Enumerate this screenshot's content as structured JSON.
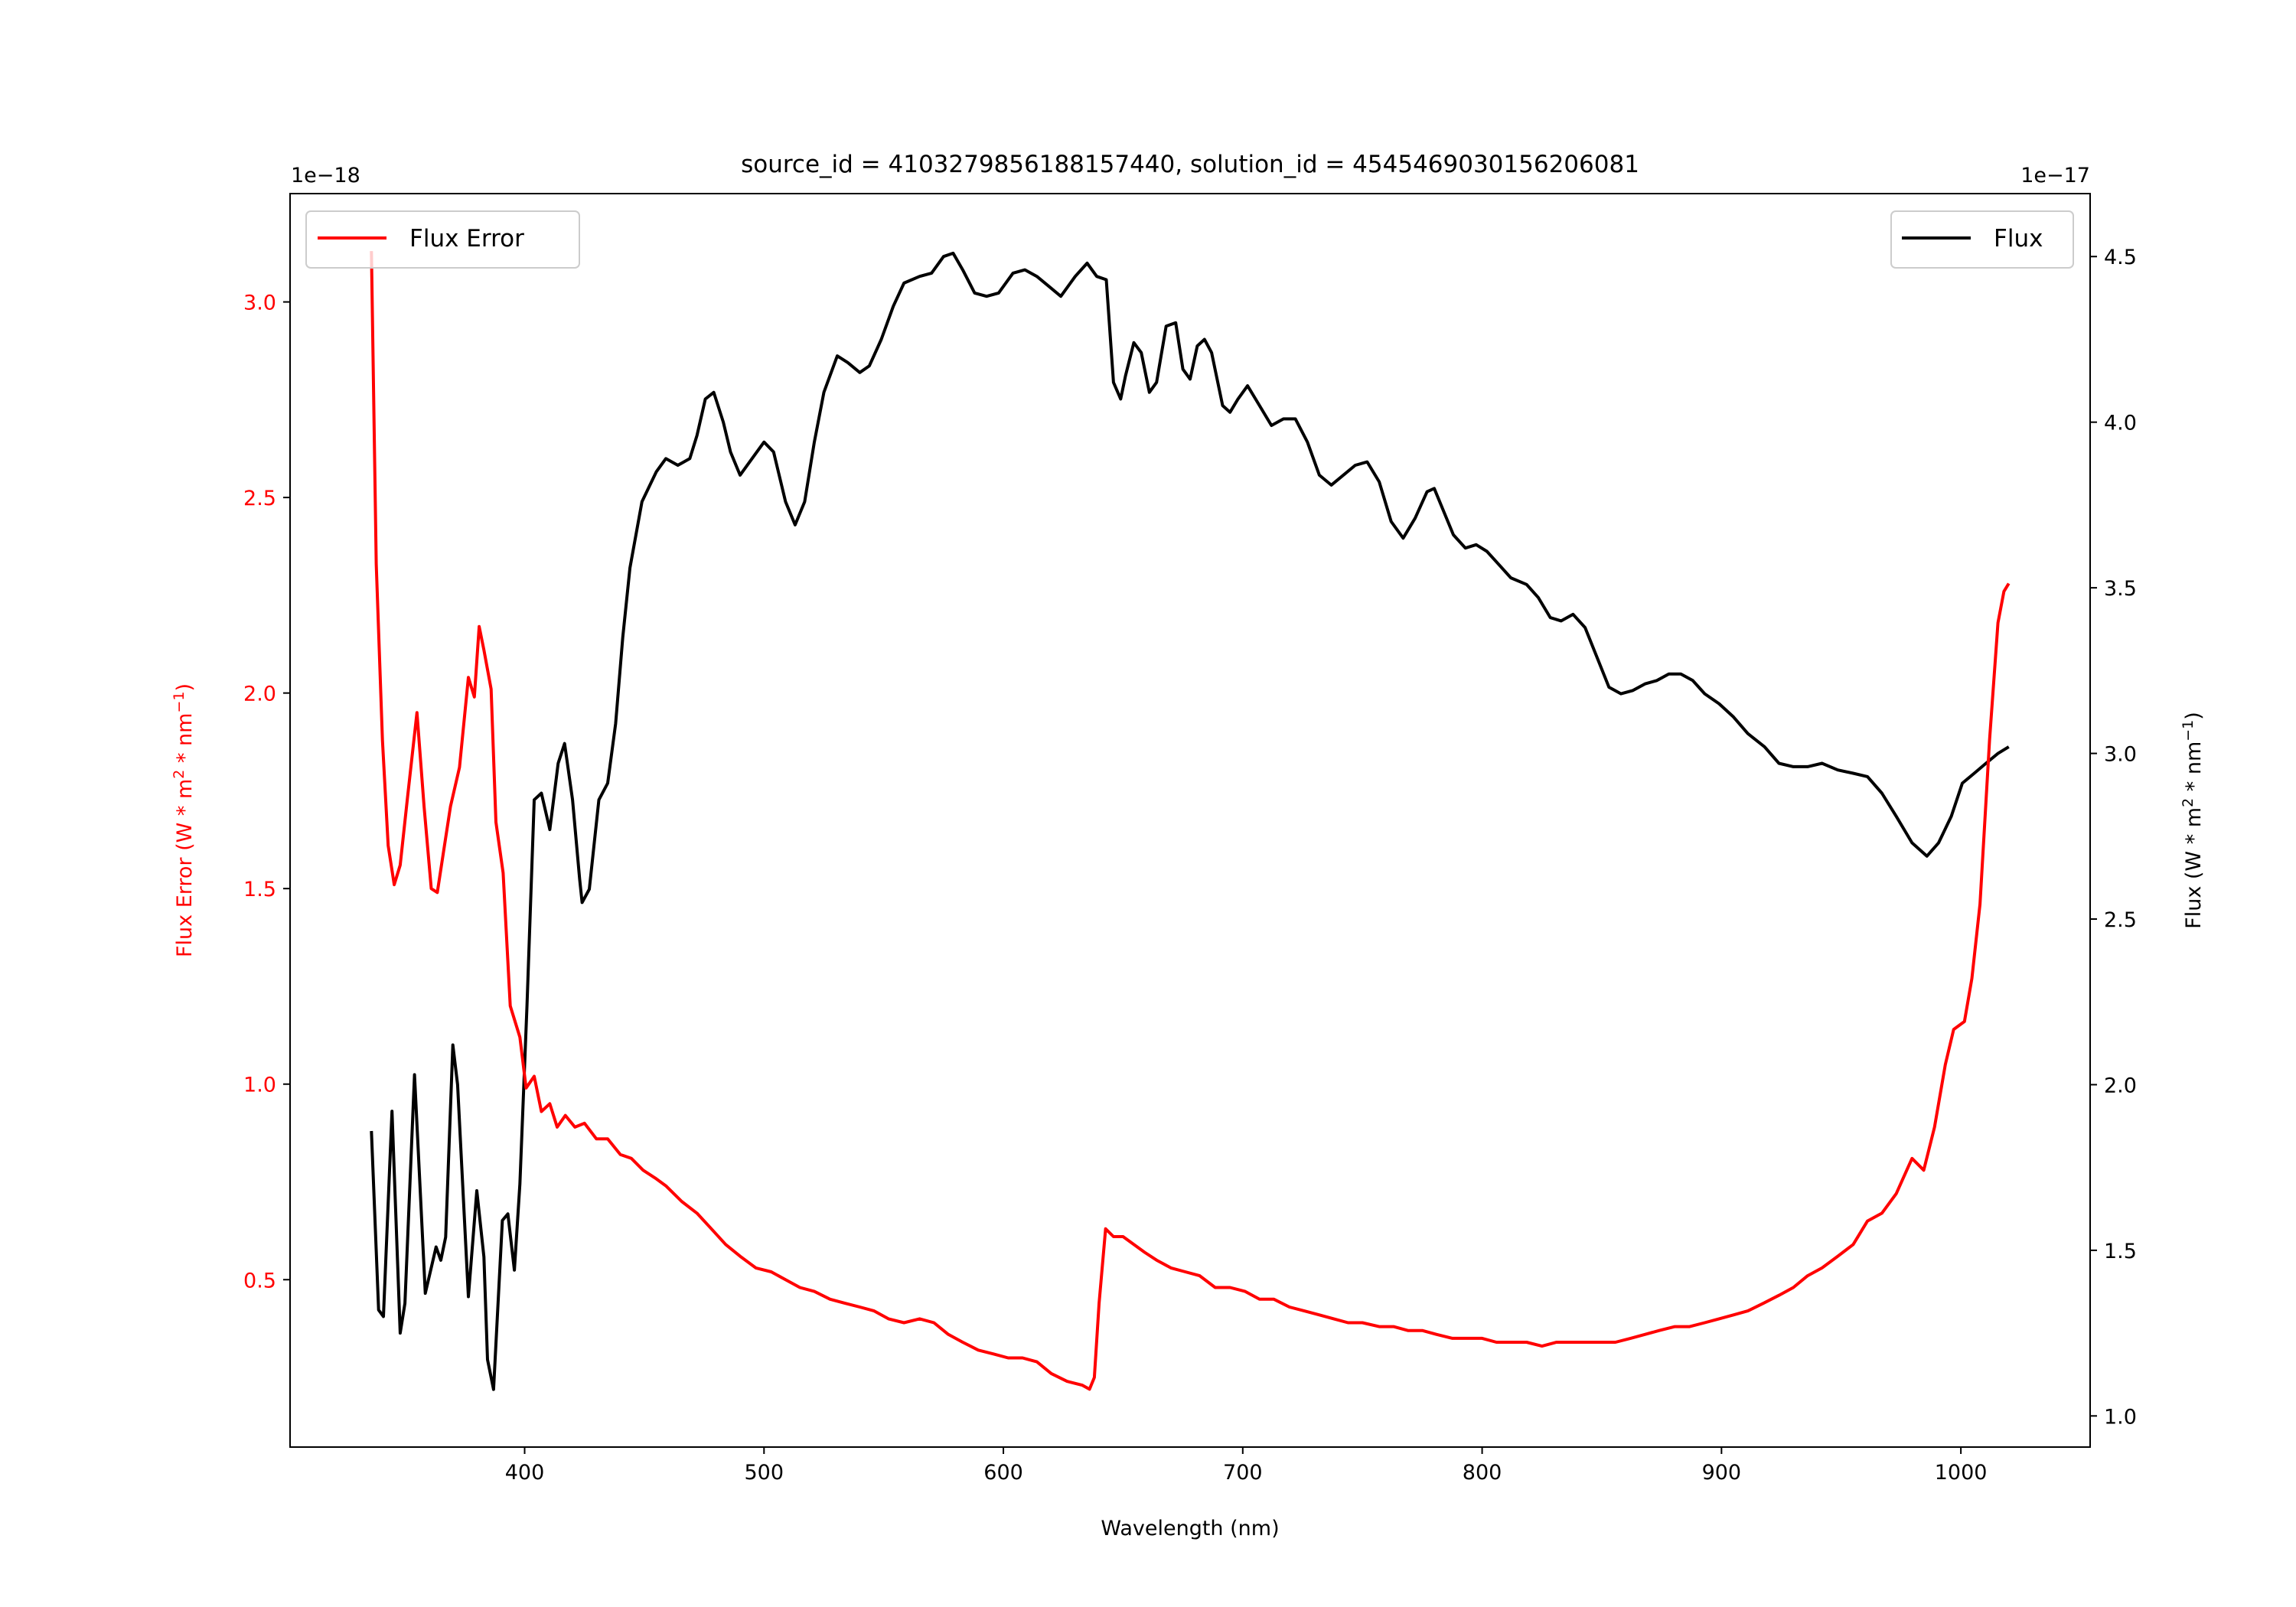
{
  "chart_data": {
    "type": "line",
    "title": "source_id = 4103279856188157440, solution_id = 4545469030156206081",
    "xlabel": "Wavelength (nm)",
    "ylabel_left": "Flux Error (W * m^2 * nm^-1)",
    "ylabel_right": "Flux (W * m^2 * nm^-1)",
    "left_offset_label": "1e−18",
    "right_offset_label": "1e−17",
    "xlim": [
      302,
      1054
    ],
    "ylim_left": [
      0.072,
      3.277
    ],
    "ylim_right": [
      0.906,
      4.69
    ],
    "xticks": [
      400,
      500,
      600,
      700,
      800,
      900,
      1000
    ],
    "yticks_left": [
      "0.5",
      "1.0",
      "1.5",
      "2.0",
      "2.5",
      "3.0"
    ],
    "yticks_right": [
      "1.0",
      "1.5",
      "2.0",
      "2.5",
      "3.0",
      "3.5",
      "4.0",
      "4.5"
    ],
    "grid": false,
    "colors": {
      "flux_error": "#ff0000",
      "flux": "#000000"
    },
    "series": [
      {
        "name": "Flux Error",
        "axis": "left",
        "legend": "top-left",
        "x": [
          336,
          338,
          340.6,
          343,
          345.5,
          348,
          351,
          355,
          358,
          361,
          363.5,
          366,
          369,
          372.8,
          376.5,
          379,
          381,
          383,
          386,
          388,
          391,
          394,
          398,
          400.6,
          404,
          407,
          410.5,
          413.6,
          417,
          421,
          425,
          430,
          434.7,
          440,
          444.6,
          449.5,
          454.5,
          459,
          465.6,
          472,
          478,
          484,
          490,
          496.6,
          503,
          509,
          515,
          521,
          527.6,
          533.7,
          540,
          546,
          552,
          558.5,
          565,
          571,
          577,
          583,
          589.5,
          596,
          602,
          608,
          614,
          620,
          626.6,
          633,
          636,
          638,
          640,
          642.7,
          646,
          650,
          654.5,
          659,
          664,
          670,
          676,
          682,
          688.5,
          694.7,
          701,
          707,
          713,
          719.5,
          725.7,
          732,
          738,
          744,
          750,
          757,
          763,
          769,
          775,
          781,
          787.6,
          794,
          800,
          806,
          812,
          818.6,
          825,
          831,
          837,
          843,
          849.5,
          855.7,
          862,
          868,
          874,
          880.5,
          886.7,
          893,
          899,
          905,
          911,
          917.6,
          924,
          930,
          936,
          942,
          948.6,
          955,
          961,
          967,
          973,
          979.6,
          984.5,
          989,
          993.5,
          997,
          1001.5,
          1004.6,
          1008,
          1012,
          1015.5,
          1018,
          1020
        ],
        "y": [
          3.13,
          2.33,
          1.88,
          1.61,
          1.51,
          1.56,
          1.73,
          1.95,
          1.71,
          1.5,
          1.49,
          1.59,
          1.71,
          1.81,
          2.04,
          1.99,
          2.17,
          2.11,
          2.01,
          1.67,
          1.54,
          1.2,
          1.12,
          0.99,
          1.02,
          0.93,
          0.95,
          0.89,
          0.92,
          0.89,
          0.9,
          0.86,
          0.86,
          0.82,
          0.81,
          0.78,
          0.76,
          0.74,
          0.7,
          0.67,
          0.63,
          0.59,
          0.56,
          0.53,
          0.52,
          0.5,
          0.48,
          0.47,
          0.45,
          0.44,
          0.43,
          0.42,
          0.4,
          0.39,
          0.4,
          0.39,
          0.36,
          0.34,
          0.32,
          0.31,
          0.3,
          0.3,
          0.29,
          0.26,
          0.24,
          0.23,
          0.22,
          0.25,
          0.44,
          0.63,
          0.61,
          0.61,
          0.59,
          0.57,
          0.55,
          0.53,
          0.52,
          0.51,
          0.48,
          0.48,
          0.47,
          0.45,
          0.45,
          0.43,
          0.42,
          0.41,
          0.4,
          0.39,
          0.39,
          0.38,
          0.38,
          0.37,
          0.37,
          0.36,
          0.35,
          0.35,
          0.35,
          0.34,
          0.34,
          0.34,
          0.33,
          0.34,
          0.34,
          0.34,
          0.34,
          0.34,
          0.35,
          0.36,
          0.37,
          0.38,
          0.38,
          0.39,
          0.4,
          0.41,
          0.42,
          0.44,
          0.46,
          0.48,
          0.51,
          0.53,
          0.56,
          0.59,
          0.65,
          0.67,
          0.72,
          0.81,
          0.78,
          0.89,
          1.05,
          1.14,
          1.16,
          1.27,
          1.46,
          1.88,
          2.18,
          2.26,
          2.28
        ]
      },
      {
        "name": "Flux",
        "axis": "right",
        "legend": "top-right",
        "x": [
          336,
          339,
          341,
          344.6,
          348,
          350,
          354,
          358.5,
          363,
          365,
          367,
          370,
          372,
          376.5,
          380,
          383,
          384.5,
          387,
          390.7,
          393,
          395.7,
          398,
          401,
          404,
          407,
          410.5,
          414,
          416.7,
          420,
          423,
          424,
          427,
          431,
          434.7,
          438,
          441,
          444,
          449,
          455,
          459,
          464,
          469,
          472,
          475.5,
          479,
          483,
          486,
          490,
          495,
          500,
          504,
          509,
          513,
          517,
          521,
          525,
          530.6,
          535,
          540,
          544,
          549,
          554,
          558.5,
          565,
          570,
          575,
          579,
          583,
          588,
          593,
          598,
          604,
          609,
          614,
          619,
          624,
          630,
          635,
          639,
          643,
          646,
          649,
          651,
          654.5,
          657.6,
          661,
          664,
          668,
          672,
          675,
          678,
          681,
          684,
          687,
          691.6,
          694.7,
          698,
          702,
          707,
          712,
          717,
          722,
          727,
          732,
          737,
          742,
          747,
          752,
          757,
          762,
          767,
          772,
          777,
          780,
          784,
          788,
          793,
          797.5,
          802,
          807,
          812,
          818.6,
          823.5,
          828.5,
          833,
          838,
          843,
          848,
          853,
          858,
          863,
          868,
          873,
          878,
          883,
          888,
          893,
          899,
          905,
          911,
          918,
          924,
          930,
          936,
          942,
          948.6,
          955,
          961,
          967,
          973,
          979.6,
          985.8,
          990.7,
          996,
          1000.6,
          1005.6,
          1010.5,
          1015.5,
          1020
        ],
        "y": [
          1.86,
          1.32,
          1.3,
          1.92,
          1.25,
          1.34,
          2.03,
          1.37,
          1.51,
          1.47,
          1.54,
          2.12,
          2.0,
          1.36,
          1.68,
          1.48,
          1.17,
          1.08,
          1.59,
          1.61,
          1.44,
          1.7,
          2.24,
          2.86,
          2.88,
          2.77,
          2.97,
          3.03,
          2.86,
          2.62,
          2.55,
          2.59,
          2.86,
          2.91,
          3.09,
          3.35,
          3.56,
          3.76,
          3.85,
          3.89,
          3.87,
          3.89,
          3.96,
          4.07,
          4.09,
          4.0,
          3.91,
          3.84,
          3.89,
          3.94,
          3.91,
          3.76,
          3.69,
          3.76,
          3.94,
          4.09,
          4.2,
          4.18,
          4.15,
          4.17,
          4.25,
          4.35,
          4.42,
          4.44,
          4.45,
          4.5,
          4.51,
          4.46,
          4.39,
          4.38,
          4.39,
          4.45,
          4.46,
          4.44,
          4.41,
          4.38,
          4.44,
          4.48,
          4.44,
          4.43,
          4.12,
          4.07,
          4.14,
          4.24,
          4.21,
          4.09,
          4.12,
          4.29,
          4.3,
          4.16,
          4.13,
          4.23,
          4.25,
          4.21,
          4.05,
          4.03,
          4.07,
          4.11,
          4.05,
          3.99,
          4.01,
          4.01,
          3.94,
          3.84,
          3.81,
          3.84,
          3.87,
          3.88,
          3.82,
          3.7,
          3.65,
          3.71,
          3.79,
          3.8,
          3.73,
          3.66,
          3.62,
          3.63,
          3.61,
          3.57,
          3.53,
          3.51,
          3.47,
          3.41,
          3.4,
          3.42,
          3.38,
          3.29,
          3.2,
          3.18,
          3.19,
          3.21,
          3.22,
          3.24,
          3.24,
          3.22,
          3.18,
          3.15,
          3.11,
          3.06,
          3.02,
          2.97,
          2.96,
          2.96,
          2.97,
          2.95,
          2.94,
          2.93,
          2.88,
          2.81,
          2.73,
          2.69,
          2.73,
          2.81,
          2.91,
          2.94,
          2.97,
          3.0,
          3.02
        ]
      }
    ]
  }
}
